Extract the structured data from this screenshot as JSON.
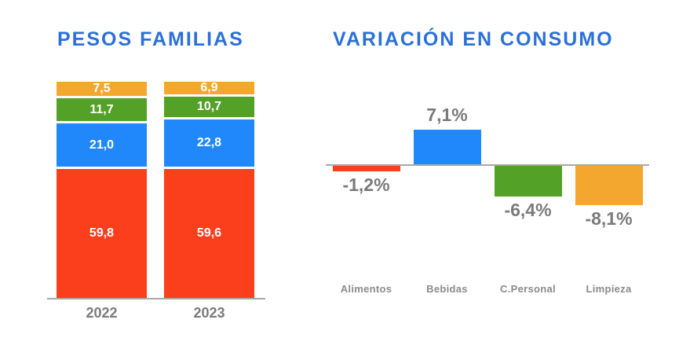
{
  "chart_data": [
    {
      "type": "bar",
      "subtype": "stacked",
      "title": "PESOS FAMILIAS",
      "categories": [
        "2022",
        "2023"
      ],
      "series": [
        {
          "name": "red",
          "color": "#FB3E1C",
          "values": [
            59.8,
            59.6
          ],
          "labels": [
            "59,8",
            "59,6"
          ]
        },
        {
          "name": "blue",
          "color": "#2088FB",
          "values": [
            21.0,
            22.8
          ],
          "labels": [
            "21,0",
            "22,8"
          ]
        },
        {
          "name": "green",
          "color": "#53A126",
          "values": [
            11.7,
            10.7
          ],
          "labels": [
            "11,7",
            "10,7"
          ]
        },
        {
          "name": "orange",
          "color": "#F3A72F",
          "values": [
            7.5,
            6.9
          ],
          "labels": [
            "7,5",
            "6,9"
          ]
        }
      ],
      "ylim": [
        0,
        100
      ],
      "legend": "none",
      "grid": "off"
    },
    {
      "type": "bar",
      "title": "VARIACIÓN EN CONSUMO",
      "categories": [
        "Alimentos",
        "Bebidas",
        "C.Personal",
        "Limpieza"
      ],
      "values": [
        -1.2,
        7.1,
        -6.4,
        -8.1
      ],
      "value_labels": [
        "-1,2%",
        "7,1%",
        "-6,4%",
        "-8,1%"
      ],
      "colors": [
        "#FB3E1C",
        "#2088FB",
        "#53A126",
        "#F3A72F"
      ],
      "baseline": 0,
      "legend": "none",
      "grid": "off"
    }
  ],
  "colors": {
    "title": "#2B70D8",
    "label_gray": "#7A7A7A",
    "axis": "#A8A8A8",
    "background": "#FFFFFF"
  }
}
